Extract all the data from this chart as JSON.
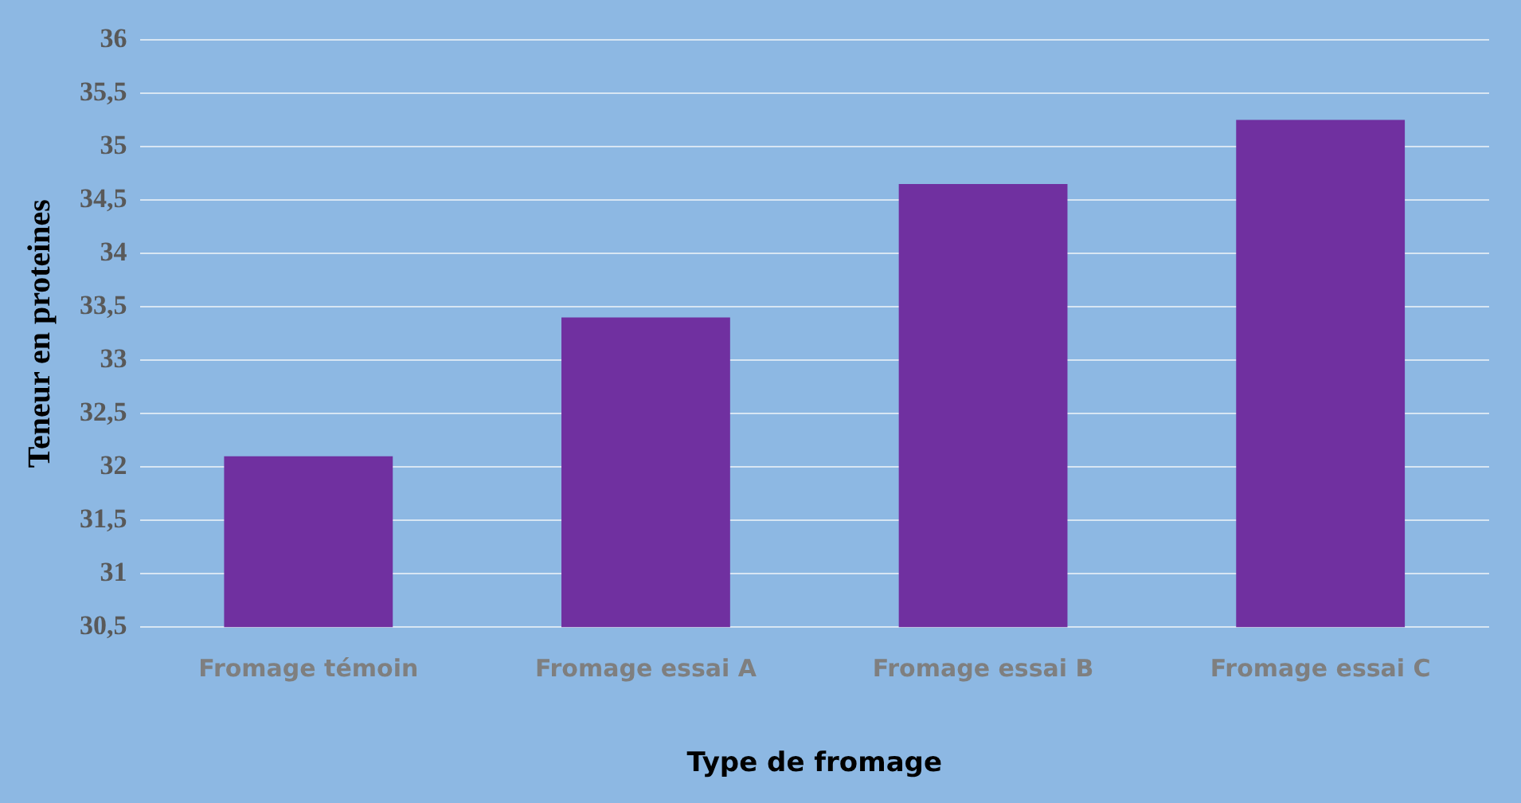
{
  "chart_data": {
    "type": "bar",
    "xlabel": "Type de fromage",
    "ylabel": "Teneur en proteines",
    "categories": [
      "Fromage témoin",
      "Fromage essai A",
      "Fromage essai B",
      "Fromage essai C"
    ],
    "values": [
      32.1,
      33.4,
      34.65,
      35.25
    ],
    "color": "#7030a0",
    "ylim": [
      30.5,
      36
    ],
    "yticks": [
      {
        "value": 30.5,
        "label": "30,5"
      },
      31,
      {
        "value": 31.5,
        "label": "31,5"
      },
      32,
      {
        "value": 32.5,
        "label": "32,5"
      },
      33,
      {
        "value": 33.5,
        "label": "33,5"
      },
      34,
      {
        "value": 34.5,
        "label": "34,5"
      },
      35,
      {
        "value": 35.5,
        "label": "35,5"
      },
      36
    ],
    "grid": "y",
    "legend": false
  }
}
